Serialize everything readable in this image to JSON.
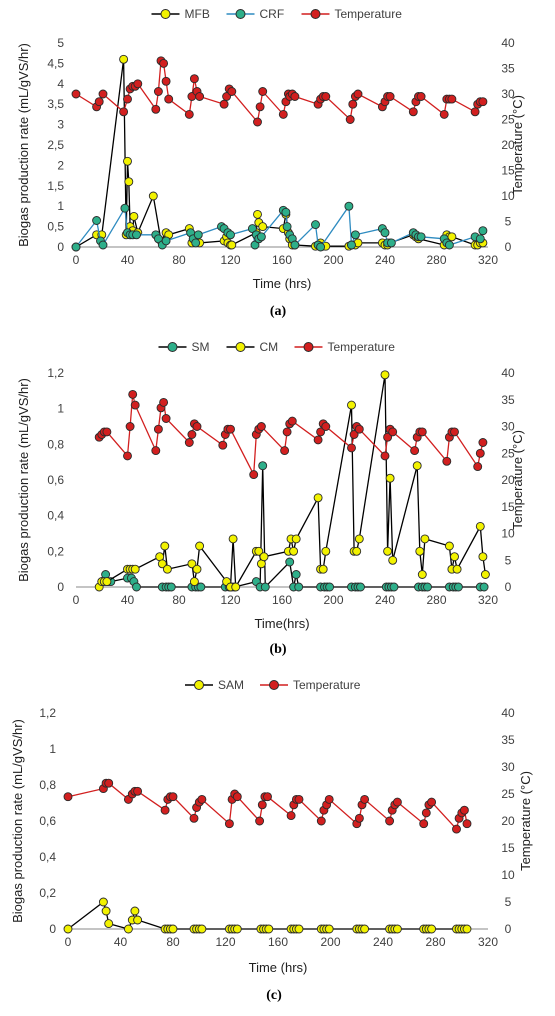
{
  "colors": {
    "MFB": "#f2f200",
    "CRF": "#2eaf8a",
    "SM": "#2eaf8a",
    "CM": "#f2f200",
    "SAM": "#f2f200",
    "Temperature": "#d21f1f",
    "marker_edge": "#2b2b2b",
    "grid": "none"
  },
  "chart_data": [
    {
      "type": "line",
      "caption": "(a)",
      "xlabel": "Time (hrs)",
      "ylabel": "Biogas production rate (mL/gVS/hr)",
      "y2label": "Temperature (°C)",
      "xlim": [
        0,
        320
      ],
      "ylim": [
        0,
        5
      ],
      "y2lim": [
        0,
        40
      ],
      "xticks": [
        "0",
        "40",
        "80",
        "120",
        "160",
        "200",
        "240",
        "280",
        "320"
      ],
      "yticks": [
        "0",
        "0,5",
        "1",
        "1,5",
        "2",
        "2,5",
        "3",
        "3,5",
        "4",
        "4,5",
        "5"
      ],
      "y2ticks": [
        "0",
        "5",
        "10",
        "15",
        "20",
        "25",
        "30",
        "35",
        "40"
      ],
      "legend": [
        "MFB",
        "CRF",
        "Temperature"
      ],
      "legend_position": "top",
      "series": [
        {
          "name": "MFB",
          "axis": "left",
          "color_key": "MFB",
          "line": "#000000",
          "x": [
            0,
            16,
            20,
            37,
            39,
            40,
            41,
            42,
            44,
            45,
            48,
            60,
            66,
            70,
            72,
            88,
            90,
            93,
            96,
            115,
            117,
            118,
            120,
            121,
            140,
            141,
            142,
            145,
            161,
            163,
            165,
            166,
            168,
            170,
            186,
            188,
            190,
            192,
            194,
            212,
            214,
            217,
            219,
            238,
            240,
            242,
            244,
            262,
            264,
            266,
            286,
            288,
            290,
            292,
            310,
            312,
            314,
            316
          ],
          "y": [
            0,
            0.3,
            0.3,
            4.6,
            0.3,
            2.1,
            1.6,
            0.5,
            0.4,
            0.75,
            0.35,
            1.25,
            0.15,
            0.35,
            0.3,
            0.45,
            0.1,
            0.15,
            0.1,
            0.15,
            0.25,
            0.1,
            0.05,
            0.05,
            0.35,
            0.8,
            0.6,
            0.5,
            0.45,
            0.8,
            0.35,
            0.2,
            0.05,
            0.05,
            0.02,
            0.05,
            0.1,
            0.02,
            0.02,
            0.02,
            0.05,
            0.05,
            0.1,
            0.1,
            0.05,
            0.05,
            0.1,
            0.3,
            0.25,
            0.2,
            0.05,
            0.3,
            0.25,
            0.25,
            0.05,
            0.05,
            0.1,
            0.1
          ]
        },
        {
          "name": "CRF",
          "axis": "left",
          "color_key": "CRF",
          "line": "#2e8bc0",
          "x": [
            0,
            16,
            19,
            21,
            38,
            40,
            42,
            44,
            47,
            62,
            64,
            67,
            70,
            89,
            91,
            93,
            95,
            113,
            115,
            118,
            120,
            137,
            139,
            140,
            142,
            144,
            161,
            163,
            164,
            166,
            168,
            170,
            186,
            188,
            190,
            212,
            214,
            217,
            238,
            240,
            242,
            245,
            262,
            264,
            266,
            268,
            286,
            288,
            290,
            310,
            314,
            316
          ],
          "y": [
            0,
            0.65,
            0.15,
            0.05,
            0.95,
            0.35,
            0.3,
            0.3,
            0.3,
            0.3,
            0.2,
            0.05,
            0.15,
            0.35,
            0.2,
            0.1,
            0.3,
            0.5,
            0.45,
            0.35,
            0.3,
            0.45,
            0.05,
            0.3,
            0.2,
            0.25,
            0.9,
            0.85,
            0.5,
            0.3,
            0.2,
            0.05,
            0.55,
            0.05,
            0.0,
            1.0,
            0.05,
            0.3,
            0.45,
            0.35,
            0.1,
            0.1,
            0.35,
            0.3,
            0.25,
            0.25,
            0.2,
            0.1,
            0.05,
            0.25,
            0.2,
            0.4
          ]
        },
        {
          "name": "Temperature",
          "axis": "right",
          "color_key": "Temperature",
          "line": "#d21f1f",
          "x": [
            0,
            16,
            18,
            21,
            37,
            40,
            42,
            44,
            46,
            48,
            62,
            64,
            66,
            68,
            70,
            72,
            88,
            90,
            92,
            94,
            96,
            115,
            117,
            119,
            121,
            141,
            143,
            145,
            161,
            163,
            165,
            166,
            168,
            170,
            188,
            190,
            192,
            194,
            213,
            215,
            217,
            219,
            238,
            240,
            242,
            244,
            262,
            264,
            266,
            268,
            286,
            288,
            290,
            292,
            310,
            312,
            314,
            316
          ],
          "y": [
            30,
            27.5,
            28.5,
            30,
            26.5,
            29,
            31,
            31.5,
            31.5,
            32,
            27,
            30.5,
            36.5,
            36,
            32.5,
            29,
            26,
            29.5,
            33,
            30.5,
            29.5,
            28,
            29.5,
            31,
            30.5,
            24.5,
            27.5,
            30.5,
            26,
            28.5,
            30,
            29.5,
            30,
            29.5,
            28,
            29,
            29.5,
            29.5,
            25,
            28,
            29.5,
            30,
            27.5,
            28.5,
            29.5,
            29.5,
            26.5,
            28.5,
            29.5,
            29.5,
            26,
            29,
            29,
            29,
            26.5,
            28,
            28.5,
            28.5
          ]
        }
      ]
    },
    {
      "type": "line",
      "caption": "(b)",
      "xlabel": "Time(hrs)",
      "ylabel": "Biogas production rate (mL/gVS/hr)",
      "y2label": "Temperature (°C)",
      "xlim": [
        0,
        320
      ],
      "ylim": [
        0,
        1.2
      ],
      "y2lim": [
        0,
        40
      ],
      "xticks": [
        "0",
        "40",
        "80",
        "120",
        "160",
        "200",
        "240",
        "280",
        "320"
      ],
      "yticks": [
        "0",
        "0,2",
        "0,4",
        "0,6",
        "0,8",
        "1",
        "1,2"
      ],
      "y2ticks": [
        "0",
        "5",
        "10",
        "15",
        "20",
        "25",
        "30",
        "35",
        "40"
      ],
      "legend": [
        "SM",
        "CM",
        "Temperature"
      ],
      "legend_position": "top",
      "series": [
        {
          "name": "SM",
          "axis": "left",
          "color_key": "SM",
          "line": "#000000",
          "x": [
            20,
            23,
            25,
            27,
            40,
            43,
            45,
            47,
            67,
            70,
            72,
            74,
            90,
            93,
            95,
            97,
            116,
            119,
            121,
            123,
            140,
            143,
            145,
            147,
            166,
            169,
            171,
            173,
            190,
            193,
            195,
            197,
            214,
            217,
            219,
            221,
            241,
            243,
            245,
            247,
            266,
            269,
            271,
            273,
            290,
            293,
            295,
            297,
            314,
            317
          ],
          "y": [
            0.03,
            0.07,
            0.03,
            0.03,
            0.05,
            0.05,
            0.03,
            0.0,
            0.0,
            0.0,
            0.0,
            0.0,
            0.0,
            0.0,
            0.0,
            0.0,
            0.0,
            0.0,
            0.0,
            0.0,
            0.03,
            0.0,
            0.68,
            0.0,
            0.14,
            0.0,
            0.07,
            0.0,
            0.0,
            0.0,
            0.0,
            0.0,
            0.0,
            0.0,
            0.0,
            0.0,
            0.0,
            0.0,
            0.0,
            0.0,
            0.0,
            0.0,
            0.0,
            0.0,
            0.0,
            0.0,
            0.0,
            0.0,
            0.0,
            0.0
          ]
        },
        {
          "name": "CM",
          "axis": "left",
          "color_key": "CM",
          "line": "#000000",
          "x": [
            18,
            20,
            22,
            24,
            40,
            42,
            44,
            46,
            65,
            67,
            69,
            71,
            90,
            92,
            94,
            96,
            117,
            120,
            122,
            124,
            140,
            142,
            144,
            146,
            165,
            167,
            169,
            171,
            188,
            190,
            192,
            194,
            214,
            216,
            218,
            220,
            240,
            242,
            244,
            246,
            265,
            267,
            269,
            271,
            290,
            292,
            294,
            296,
            314,
            316,
            318
          ],
          "y": [
            0.0,
            0.03,
            0.03,
            0.03,
            0.1,
            0.1,
            0.1,
            0.1,
            0.17,
            0.13,
            0.23,
            0.1,
            0.13,
            0.03,
            0.1,
            0.23,
            0.03,
            0.0,
            0.27,
            0.0,
            0.2,
            0.2,
            0.13,
            0.17,
            0.2,
            0.27,
            0.2,
            0.27,
            0.5,
            0.1,
            0.1,
            0.2,
            1.02,
            0.2,
            0.2,
            0.27,
            1.19,
            0.2,
            0.61,
            0.15,
            0.68,
            0.2,
            0.07,
            0.27,
            0.23,
            0.1,
            0.17,
            0.1,
            0.34,
            0.17,
            0.07
          ]
        },
        {
          "name": "Temperature",
          "axis": "right",
          "color_key": "Temperature",
          "line": "#d21f1f",
          "x": [
            18,
            20,
            22,
            24,
            40,
            42,
            44,
            46,
            62,
            64,
            66,
            68,
            70,
            88,
            90,
            92,
            94,
            114,
            116,
            118,
            120,
            138,
            140,
            142,
            144,
            162,
            164,
            166,
            168,
            188,
            190,
            192,
            194,
            214,
            216,
            218,
            220,
            240,
            242,
            244,
            246,
            263,
            265,
            267,
            269,
            288,
            290,
            292,
            294,
            312,
            314,
            316
          ],
          "y": [
            28,
            28.5,
            29,
            29,
            24.5,
            30,
            36,
            34,
            25.5,
            29.5,
            33.5,
            34.5,
            31.5,
            27,
            28.5,
            30.5,
            30,
            26.5,
            28.5,
            29.5,
            29.5,
            21,
            28.5,
            29.5,
            30,
            25.5,
            29,
            30.5,
            31,
            27.5,
            29,
            30.5,
            30,
            26,
            28.5,
            30,
            29.5,
            24.5,
            28,
            29.5,
            29,
            25.5,
            28,
            29,
            29,
            23.5,
            28,
            29,
            29,
            22.5,
            25,
            27
          ]
        }
      ]
    },
    {
      "type": "line",
      "caption": "(c)",
      "xlabel": "Time (hrs)",
      "ylabel": "Biogas production rate (mL/gVS/hr)",
      "y2label": "Temperature (°C)",
      "xlim": [
        0,
        320
      ],
      "ylim": [
        0,
        1.2
      ],
      "y2lim": [
        0,
        40
      ],
      "xticks": [
        "0",
        "40",
        "80",
        "120",
        "160",
        "200",
        "240",
        "280",
        "320"
      ],
      "yticks": [
        "0",
        "0,2",
        "0,4",
        "0,6",
        "0,8",
        "1",
        "1,2"
      ],
      "y2ticks": [
        "0",
        "5",
        "10",
        "15",
        "20",
        "25",
        "30",
        "35",
        "40"
      ],
      "legend": [
        "SAM",
        "Temperature"
      ],
      "legend_position": "top",
      "series": [
        {
          "name": "SAM",
          "axis": "left",
          "color_key": "SAM",
          "line": "#000000",
          "x": [
            0,
            27,
            29,
            31,
            46,
            49,
            51,
            53,
            74,
            76,
            78,
            80,
            96,
            98,
            100,
            102,
            123,
            125,
            127,
            129,
            147,
            149,
            151,
            153,
            170,
            172,
            174,
            176,
            193,
            195,
            197,
            199,
            220,
            222,
            224,
            226,
            245,
            247,
            249,
            251,
            271,
            273,
            275,
            277,
            296,
            298,
            300,
            302,
            304
          ],
          "y": [
            0,
            0.15,
            0.1,
            0.03,
            0.0,
            0.05,
            0.1,
            0.05,
            0.0,
            0.0,
            0.0,
            0.0,
            0.0,
            0.0,
            0.0,
            0.0,
            0.0,
            0.0,
            0.0,
            0.0,
            0.0,
            0.0,
            0.0,
            0.0,
            0.0,
            0.0,
            0.0,
            0.0,
            0.0,
            0.0,
            0.0,
            0.0,
            0.0,
            0.0,
            0.0,
            0.0,
            0.0,
            0.0,
            0.0,
            0.0,
            0.0,
            0.0,
            0.0,
            0.0,
            0.0,
            0.0,
            0.0,
            0.0,
            0.0
          ]
        },
        {
          "name": "Temperature",
          "axis": "right",
          "color_key": "Temperature",
          "line": "#d21f1f",
          "x": [
            0,
            27,
            29,
            31,
            46,
            49,
            51,
            53,
            74,
            76,
            78,
            80,
            96,
            98,
            100,
            102,
            123,
            125,
            127,
            129,
            146,
            148,
            150,
            152,
            170,
            172,
            174,
            176,
            193,
            195,
            197,
            199,
            220,
            222,
            224,
            226,
            245,
            247,
            249,
            251,
            271,
            273,
            275,
            277,
            296,
            298,
            300,
            302,
            304
          ],
          "y": [
            24.5,
            26,
            27,
            27,
            24,
            25,
            25.5,
            25.5,
            22,
            24,
            24.5,
            24.5,
            20.5,
            22.5,
            23.5,
            24,
            19.5,
            24,
            25,
            24.5,
            20,
            23,
            24.5,
            24.5,
            21,
            23,
            24,
            24,
            20,
            22,
            23,
            24,
            19.5,
            20.5,
            23,
            24,
            20,
            22,
            23,
            23.5,
            19.5,
            21.5,
            23,
            23.5,
            18.5,
            20.5,
            21.5,
            22,
            19.5
          ]
        }
      ]
    }
  ]
}
